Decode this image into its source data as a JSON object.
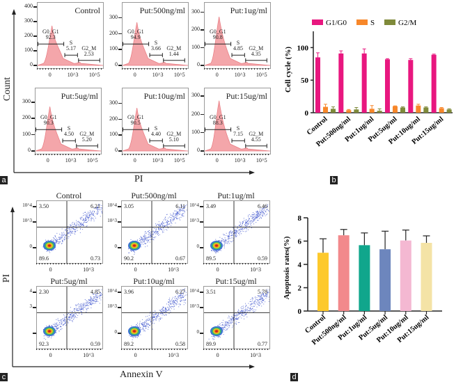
{
  "panel_labels": {
    "a": "a",
    "b": "b",
    "c": "c",
    "d": "d"
  },
  "chart_data": [
    {
      "panel": "a",
      "type": "histogram",
      "xlabel": "PI",
      "ylabel": "Count",
      "x_ticks": [
        "0",
        "10^3",
        "10^5"
      ],
      "histogram_color": "#f4a6aa",
      "plots": [
        {
          "title": "Control",
          "y_ticks": [
            "0",
            "100",
            "200",
            "300",
            "400"
          ],
          "ymax": 400,
          "gates": [
            {
              "name": "G0_G1",
              "value": "92.3"
            },
            {
              "name": "S",
              "value": "5.17"
            },
            {
              "name": "G2_M",
              "value": "2.53"
            }
          ]
        },
        {
          "title": "Put:500ng/ml",
          "y_ticks": [
            "0",
            "100",
            "200",
            "300"
          ],
          "ymax": 370,
          "gates": [
            {
              "name": "G0_G1",
              "value": "94.9"
            },
            {
              "name": "S",
              "value": "3.66"
            },
            {
              "name": "G2_M",
              "value": "1.44"
            }
          ]
        },
        {
          "title": "Put:1ug/ml",
          "y_ticks": [
            "0",
            "100",
            "200",
            "300"
          ],
          "ymax": 330,
          "gates": [
            {
              "name": "G0_G1",
              "value": "90.8"
            },
            {
              "name": "S",
              "value": "4.85"
            },
            {
              "name": "G2_M",
              "value": "4.35"
            }
          ]
        },
        {
          "title": "Put:5ug/ml",
          "y_ticks": [
            "0",
            "100",
            "200",
            "300"
          ],
          "ymax": 360,
          "gates": [
            {
              "name": "G0_G1",
              "value": "90.3"
            },
            {
              "name": "S",
              "value": "4.50"
            },
            {
              "name": "G2_M",
              "value": "5.20"
            }
          ]
        },
        {
          "title": "Put:10ug/ml",
          "y_ticks": [
            "0",
            "100",
            "200",
            "300"
          ],
          "ymax": 370,
          "gates": [
            {
              "name": "G0_G1",
              "value": "90.5"
            },
            {
              "name": "S",
              "value": "4.40"
            },
            {
              "name": "G2_M",
              "value": "5.10"
            }
          ]
        },
        {
          "title": "Put:15ug/ml",
          "y_ticks": [
            "0",
            "100",
            "200",
            "300"
          ],
          "ymax": 320,
          "gates": [
            {
              "name": "G0_G1",
              "value": "88.3"
            },
            {
              "name": "S",
              "value": "7.15"
            },
            {
              "name": "G2_M",
              "value": "4.55"
            }
          ]
        }
      ]
    },
    {
      "panel": "b",
      "type": "bar",
      "ylabel": "Cell cycle (%)",
      "ylim": [
        0,
        125
      ],
      "y_ticks": [
        0,
        50,
        100
      ],
      "legend_position": "top",
      "categories": [
        "Control",
        "Put:500ng/ml",
        "Put:1ug/ml",
        "Put:5ug/ml",
        "Put:10ug/ml",
        "Put:15ug/ml"
      ],
      "series": [
        {
          "name": "G1/G0",
          "color": "#e8177f",
          "values": [
            85,
            91,
            91,
            82,
            81,
            89
          ],
          "errors": [
            7,
            4,
            7,
            1,
            2,
            1
          ]
        },
        {
          "name": "S",
          "color": "#f7872a",
          "values": [
            9,
            4,
            6,
            10,
            11,
            7
          ],
          "errors": [
            4,
            1,
            5,
            0.5,
            2,
            1
          ]
        },
        {
          "name": "G2/M",
          "color": "#7f8a3a",
          "values": [
            6,
            5,
            3,
            8,
            8,
            5
          ],
          "errors": [
            3,
            3,
            3,
            1,
            1,
            1
          ]
        }
      ]
    },
    {
      "panel": "c",
      "type": "scatter",
      "xlabel": "Annexin V",
      "ylabel": "PI",
      "x_ticks": [
        "0",
        "10^3"
      ],
      "plots": [
        {
          "title": "Control",
          "y_ticks": [
            "10^4",
            "10^3",
            "0"
          ],
          "quadrants": {
            "upper_left": "3.50",
            "upper_right": "6.21",
            "lower_left": "89.6",
            "lower_right": "0.73"
          }
        },
        {
          "title": "Put:500ng/ml",
          "y_ticks": [
            "10^4",
            "10^3",
            "0"
          ],
          "quadrants": {
            "upper_left": "3.05",
            "upper_right": "6.11",
            "lower_left": "90.2",
            "lower_right": "0.67"
          }
        },
        {
          "title": "Put:1ug/ml",
          "y_ticks": [
            "10^4",
            "10^3",
            "0"
          ],
          "quadrants": {
            "upper_left": "3.49",
            "upper_right": "6.46",
            "lower_left": "89.5",
            "lower_right": "0.59"
          }
        },
        {
          "title": "Put:5ug/ml",
          "y_ticks": [
            "4",
            "3",
            ""
          ],
          "quadrants": {
            "upper_left": "2.30",
            "upper_right": "4.85",
            "lower_left": "92.3",
            "lower_right": "0.59"
          }
        },
        {
          "title": "Put:10ug/ml",
          "y_ticks": [
            "10^4",
            "10^3",
            "0"
          ],
          "quadrants": {
            "upper_left": "3.96",
            "upper_right": "6.27",
            "lower_left": "89.2",
            "lower_right": "0.58"
          }
        },
        {
          "title": "Put:15ug/ml",
          "y_ticks": [
            "10^4",
            "10^3",
            "0"
          ],
          "quadrants": {
            "upper_left": "3.51",
            "upper_right": "5.78",
            "lower_left": "89.9",
            "lower_right": "0.77"
          }
        }
      ]
    },
    {
      "panel": "d",
      "type": "bar",
      "ylabel": "Apoptosis rates(%)",
      "ylim": [
        0,
        8
      ],
      "y_ticks": [
        0,
        2,
        4,
        6,
        8
      ],
      "categories": [
        "Control",
        "Put:500ng/ml",
        "Put:1ug/ml",
        "Put:5ug/ml",
        "Put:10ug/ml",
        "Put:15ug/ml"
      ],
      "values": [
        5.0,
        6.5,
        5.65,
        5.3,
        6.05,
        5.85
      ],
      "errors": [
        1.2,
        0.5,
        1.05,
        1.55,
        0.9,
        0.6
      ],
      "colors": [
        "#fdc92c",
        "#f2898c",
        "#10a68c",
        "#6d86bd",
        "#f4b8d2",
        "#f4e3a6"
      ]
    }
  ]
}
